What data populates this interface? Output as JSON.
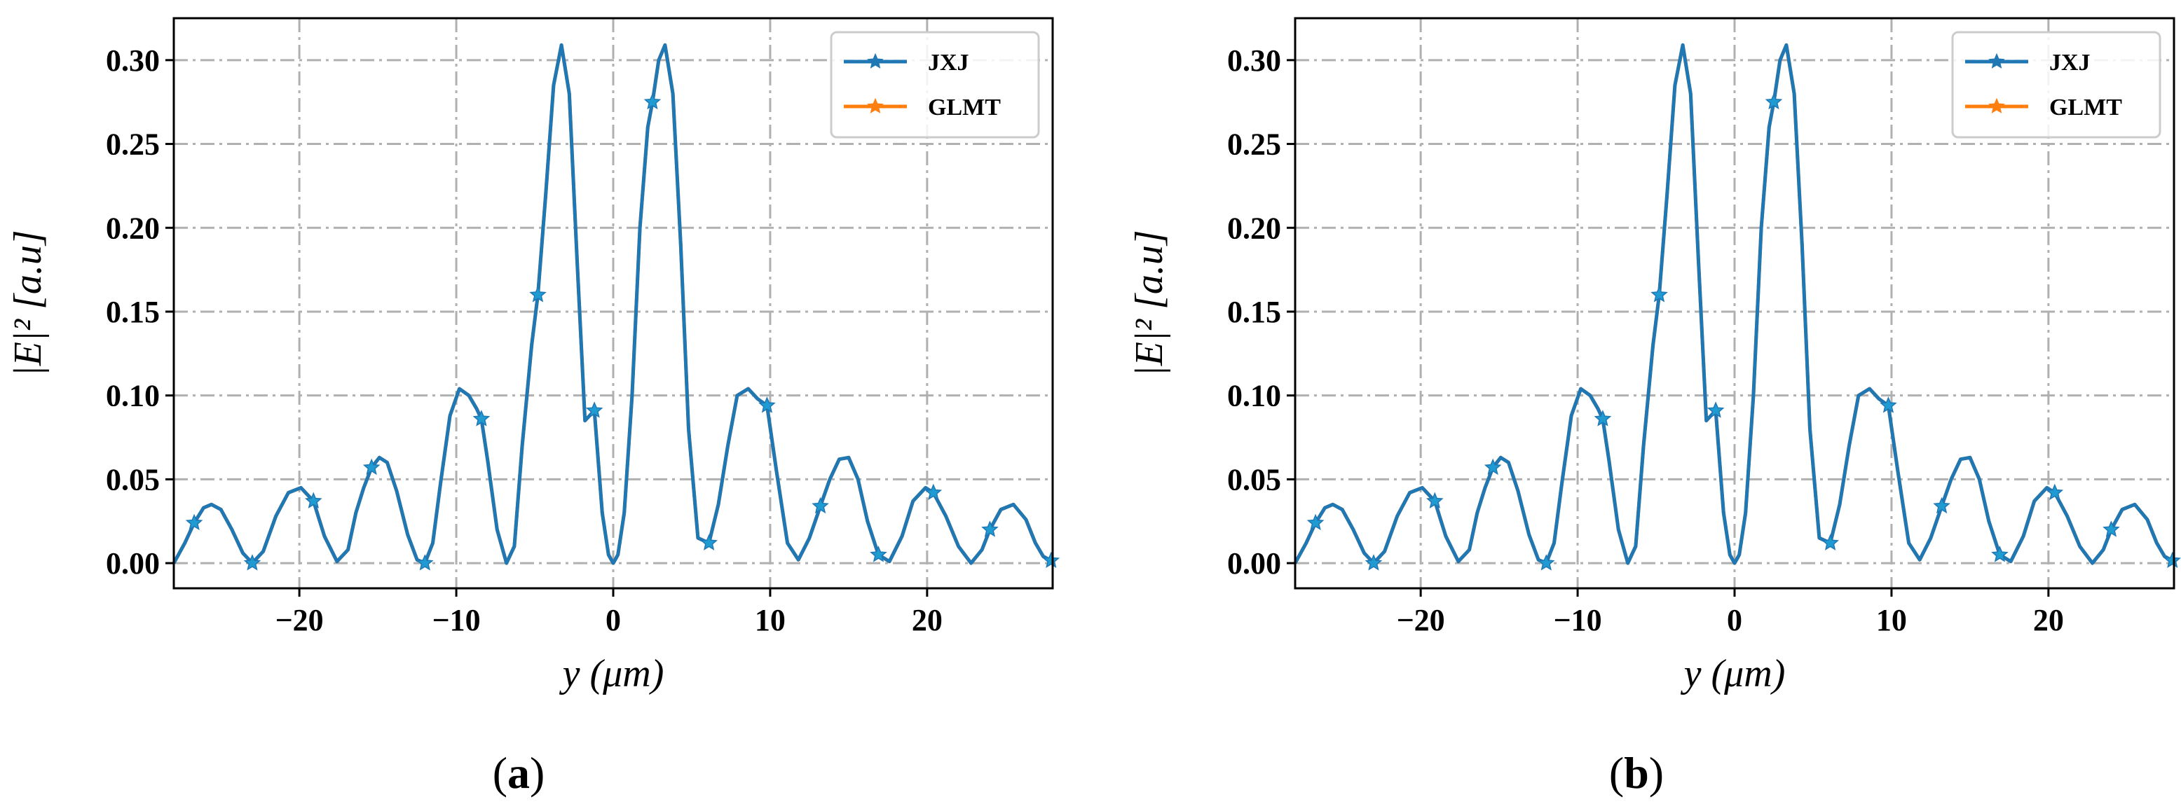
{
  "chart_data": [
    {
      "type": "line",
      "panel_label": "(a)",
      "xlabel": "y (μm)",
      "ylabel": "|E|² [a.u]",
      "xlim": [
        -28,
        28
      ],
      "ylim": [
        -0.015,
        0.325
      ],
      "x_ticks": [
        -20,
        -10,
        0,
        10,
        20
      ],
      "x_tick_labels": [
        "−20",
        "−10",
        "0",
        "10",
        "20"
      ],
      "y_ticks": [
        0.0,
        0.05,
        0.1,
        0.15,
        0.2,
        0.25,
        0.3
      ],
      "y_tick_labels": [
        "0.00",
        "0.05",
        "0.10",
        "0.15",
        "0.20",
        "0.25",
        "0.30"
      ],
      "grid": true,
      "legend_position": "top-right",
      "series": [
        {
          "name": "JXJ",
          "color": "#1f77b4",
          "marker": "star",
          "markers_x": [
            -26.7,
            -23.0,
            -19.1,
            -15.4,
            -12.0,
            -8.4,
            -4.8,
            -1.2,
            2.5,
            6.1,
            9.8,
            13.2,
            16.9,
            20.4,
            24.0,
            27.9
          ],
          "x": [
            -28,
            -27.3,
            -26.7,
            -26.1,
            -25.6,
            -25.0,
            -24.3,
            -23.6,
            -23.0,
            -22.3,
            -21.5,
            -20.7,
            -19.9,
            -19.1,
            -18.4,
            -17.6,
            -16.9,
            -16.4,
            -15.9,
            -15.4,
            -14.9,
            -14.4,
            -13.8,
            -13.1,
            -12.5,
            -12.0,
            -11.5,
            -11.0,
            -10.4,
            -9.8,
            -9.2,
            -8.7,
            -8.4,
            -8.0,
            -7.4,
            -6.8,
            -6.3,
            -5.8,
            -5.2,
            -4.8,
            -4.3,
            -3.8,
            -3.3,
            -2.8,
            -2.3,
            -1.8,
            -1.2,
            -0.7,
            -0.3,
            0.0,
            0.3,
            0.7,
            1.2,
            1.7,
            2.2,
            2.5,
            2.9,
            3.3,
            3.8,
            4.3,
            4.8,
            5.4,
            6.1,
            6.7,
            7.3,
            7.9,
            8.6,
            9.2,
            9.8,
            10.4,
            11.1,
            11.8,
            12.5,
            13.2,
            13.8,
            14.4,
            15.0,
            15.6,
            16.2,
            16.9,
            17.6,
            18.4,
            19.1,
            19.9,
            20.4,
            21.2,
            22.0,
            22.8,
            23.5,
            24.0,
            24.7,
            25.5,
            26.3,
            26.9,
            27.4,
            28.0
          ],
          "y": [
            0.0,
            0.012,
            0.024,
            0.033,
            0.035,
            0.032,
            0.02,
            0.006,
            0.0,
            0.007,
            0.028,
            0.042,
            0.045,
            0.037,
            0.016,
            0.001,
            0.008,
            0.03,
            0.045,
            0.057,
            0.063,
            0.06,
            0.043,
            0.017,
            0.002,
            0.0,
            0.012,
            0.048,
            0.088,
            0.104,
            0.1,
            0.092,
            0.086,
            0.061,
            0.02,
            0.0,
            0.01,
            0.07,
            0.13,
            0.16,
            0.22,
            0.285,
            0.309,
            0.28,
            0.18,
            0.085,
            0.091,
            0.03,
            0.005,
            0.0,
            0.005,
            0.03,
            0.1,
            0.2,
            0.26,
            0.275,
            0.3,
            0.309,
            0.28,
            0.19,
            0.08,
            0.015,
            0.012,
            0.035,
            0.07,
            0.1,
            0.104,
            0.098,
            0.094,
            0.055,
            0.012,
            0.002,
            0.015,
            0.034,
            0.05,
            0.062,
            0.063,
            0.05,
            0.025,
            0.005,
            0.001,
            0.016,
            0.037,
            0.045,
            0.042,
            0.028,
            0.01,
            0.0,
            0.008,
            0.02,
            0.032,
            0.035,
            0.026,
            0.012,
            0.004,
            0.001
          ]
        },
        {
          "name": "GLMT",
          "color": "#ff7f0e",
          "marker": "star",
          "same_as": "JXJ"
        }
      ]
    },
    {
      "type": "line",
      "panel_label": "(b)",
      "xlabel": "y (μm)",
      "ylabel": "|E|² [a.u]",
      "xlim": [
        -28,
        28
      ],
      "ylim": [
        -0.015,
        0.325
      ],
      "x_ticks": [
        -20,
        -10,
        0,
        10,
        20
      ],
      "x_tick_labels": [
        "−20",
        "−10",
        "0",
        "10",
        "20"
      ],
      "y_ticks": [
        0.0,
        0.05,
        0.1,
        0.15,
        0.2,
        0.25,
        0.3
      ],
      "y_tick_labels": [
        "0.00",
        "0.05",
        "0.10",
        "0.15",
        "0.20",
        "0.25",
        "0.30"
      ],
      "grid": true,
      "legend_position": "top-right",
      "series": [
        {
          "name": "JXJ",
          "color": "#1f77b4",
          "marker": "star",
          "markers_x": [
            -26.7,
            -23.0,
            -19.1,
            -15.4,
            -12.0,
            -8.4,
            -4.8,
            -1.2,
            2.5,
            6.1,
            9.8,
            13.2,
            16.9,
            20.4,
            24.0,
            27.9
          ],
          "same_as": "a.JXJ"
        },
        {
          "name": "GLMT",
          "color": "#ff7f0e",
          "marker": "star",
          "same_as": "JXJ"
        }
      ]
    }
  ]
}
